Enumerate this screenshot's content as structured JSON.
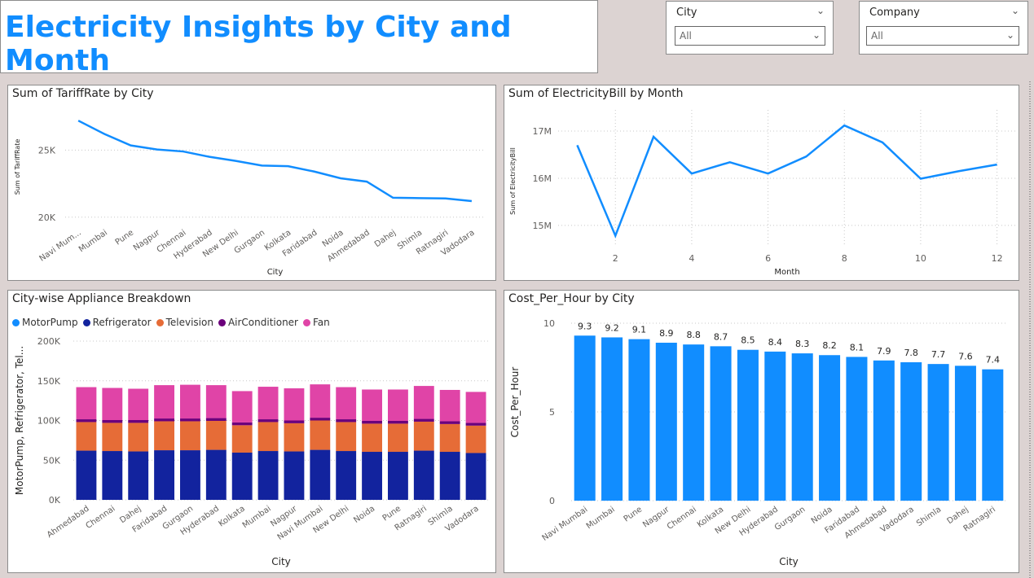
{
  "header": {
    "title": "Electricity Insights by City and Month"
  },
  "slicers": [
    {
      "label": "City",
      "value": "All"
    },
    {
      "label": "Company",
      "value": "All"
    }
  ],
  "icons": {
    "chevron": "chevron-down-icon"
  },
  "colors": {
    "accent": "#118dff",
    "motorpump": "#118dff",
    "refrigerator": "#12239e",
    "television": "#e66c37",
    "airconditioner": "#6b007b",
    "fan": "#e044a7"
  },
  "chart_data": [
    {
      "id": "tariff",
      "type": "line",
      "title": "Sum of TariffRate by City",
      "xlabel": "City",
      "ylabel": "Sum of TariffRate",
      "categories": [
        "Navi Mum...",
        "Mumbai",
        "Pune",
        "Nagpur",
        "Chennai",
        "Hyderabad",
        "New Delhi",
        "Gurgaon",
        "Kolkata",
        "Faridabad",
        "Noida",
        "Ahmedabad",
        "Dahej",
        "Shimla",
        "Ratnagiri",
        "Vadodara"
      ],
      "values": [
        27200,
        26200,
        25350,
        25050,
        24900,
        24500,
        24200,
        23850,
        23800,
        23400,
        22900,
        22650,
        21450,
        21420,
        21400,
        21200
      ],
      "ylim": [
        19500,
        28000
      ],
      "yticks": [
        20000,
        25000
      ],
      "yticklabels": [
        "20K",
        "25K"
      ],
      "grid": true
    },
    {
      "id": "bill",
      "type": "line",
      "title": "Sum of ElectricityBill by Month",
      "xlabel": "Month",
      "ylabel": "Sum of ElectricityBill",
      "x": [
        1,
        2,
        3,
        4,
        5,
        6,
        7,
        8,
        9,
        10,
        11,
        12
      ],
      "values": [
        16700000,
        14780000,
        16880000,
        16100000,
        16340000,
        16100000,
        16460000,
        17120000,
        16760000,
        15990000,
        16150000,
        16290000
      ],
      "xlim": [
        0.5,
        12.5
      ],
      "xticks": [
        2,
        4,
        6,
        8,
        10,
        12
      ],
      "ylim": [
        14600000,
        17450000
      ],
      "yticks": [
        15000000,
        16000000,
        17000000
      ],
      "yticklabels": [
        "15M",
        "16M",
        "17M"
      ],
      "grid": true
    },
    {
      "id": "appliance",
      "type": "bar",
      "stacked": true,
      "title": "City-wise Appliance Breakdown",
      "xlabel": "City",
      "ylabel": "MotorPump, Refrigerator, Tel...",
      "legend": "top-left",
      "categories": [
        "Ahmedabad",
        "Chennai",
        "Dahej",
        "Faridabad",
        "Gurgaon",
        "Hyderabad",
        "Kolkata",
        "Mumbai",
        "Nagpur",
        "Navi Mumbai",
        "New Delhi",
        "Noida",
        "Pune",
        "Ratnagiri",
        "Shimla",
        "Vadodara"
      ],
      "series": [
        {
          "name": "MotorPump",
          "color": "#118dff",
          "values": [
            0,
            0,
            0,
            0,
            0,
            0,
            0,
            0,
            0,
            0,
            0,
            0,
            0,
            0,
            0,
            0
          ]
        },
        {
          "name": "Refrigerator",
          "color": "#12239e",
          "values": [
            62000,
            61500,
            61000,
            62500,
            62500,
            63000,
            59500,
            61500,
            61000,
            63000,
            61500,
            60500,
            60500,
            62000,
            60500,
            59000
          ]
        },
        {
          "name": "Television",
          "color": "#e66c37",
          "values": [
            36000,
            35500,
            36000,
            36500,
            36500,
            36500,
            34500,
            36500,
            35500,
            37000,
            36500,
            35500,
            35500,
            36500,
            35000,
            34500
          ]
        },
        {
          "name": "AirConditioner",
          "color": "#6b007b",
          "values": [
            3500,
            3500,
            3500,
            3500,
            3500,
            3500,
            3500,
            3500,
            3500,
            3500,
            3500,
            3500,
            3500,
            3500,
            3500,
            3500
          ]
        },
        {
          "name": "Fan",
          "color": "#e044a7",
          "values": [
            40500,
            40500,
            39500,
            42000,
            42500,
            41500,
            39500,
            41000,
            40500,
            42000,
            40500,
            39500,
            39500,
            41500,
            39500,
            39000
          ]
        }
      ],
      "ylim": [
        0,
        200000
      ],
      "yticks": [
        0,
        50000,
        100000,
        150000,
        200000
      ],
      "yticklabels": [
        "0K",
        "50K",
        "100K",
        "150K",
        "200K"
      ],
      "grid": true
    },
    {
      "id": "cost",
      "type": "bar",
      "title": "Cost_Per_Hour by City",
      "xlabel": "City",
      "ylabel": "Cost_Per_Hour",
      "categories": [
        "Navi Mumbai",
        "Mumbai",
        "Pune",
        "Nagpur",
        "Chennai",
        "Kolkata",
        "New Delhi",
        "Hyderabad",
        "Gurgaon",
        "Noida",
        "Faridabad",
        "Ahmedabad",
        "Vadodara",
        "Shimla",
        "Dahej",
        "Ratnagiri"
      ],
      "values": [
        9.3,
        9.2,
        9.1,
        8.9,
        8.8,
        8.7,
        8.5,
        8.4,
        8.3,
        8.2,
        8.1,
        7.9,
        7.8,
        7.7,
        7.6,
        7.4
      ],
      "ylim": [
        0,
        10
      ],
      "yticks": [
        0,
        5,
        10
      ],
      "grid": true,
      "data_labels": true
    }
  ]
}
